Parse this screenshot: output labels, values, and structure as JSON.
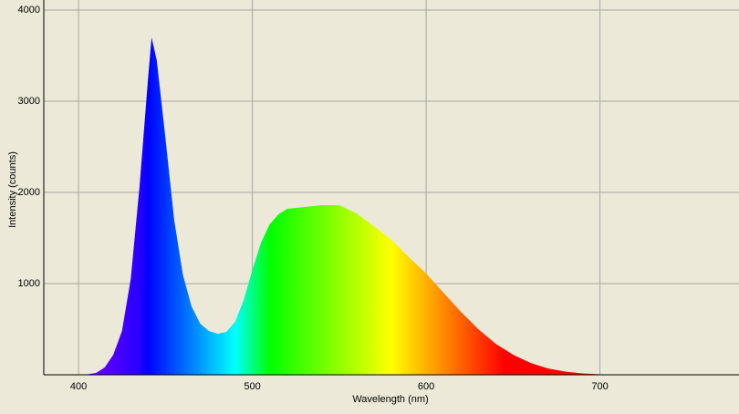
{
  "chart_data": {
    "type": "area",
    "xlabel": "Wavelength (nm)",
    "ylabel": "Intensity (counts)",
    "x": [
      400,
      405,
      410,
      415,
      420,
      425,
      430,
      435,
      440,
      442,
      445,
      450,
      455,
      460,
      465,
      470,
      475,
      480,
      485,
      490,
      495,
      500,
      505,
      510,
      515,
      520,
      530,
      540,
      550,
      560,
      570,
      580,
      590,
      600,
      610,
      620,
      630,
      640,
      650,
      660,
      670,
      680,
      690,
      700,
      710,
      720
    ],
    "values": [
      0,
      5,
      20,
      80,
      220,
      480,
      1050,
      2050,
      3250,
      3700,
      3450,
      2600,
      1700,
      1100,
      750,
      560,
      480,
      450,
      470,
      580,
      820,
      1150,
      1450,
      1650,
      1760,
      1820,
      1840,
      1860,
      1860,
      1770,
      1630,
      1480,
      1290,
      1110,
      900,
      690,
      500,
      340,
      220,
      130,
      70,
      35,
      15,
      5,
      0,
      0
    ],
    "xlim": [
      380,
      780
    ],
    "ylim": [
      0,
      4000
    ],
    "xticks": [
      400,
      500,
      600,
      700
    ],
    "yticks": [
      1000,
      2000,
      3000,
      4000
    ],
    "grid": true
  }
}
